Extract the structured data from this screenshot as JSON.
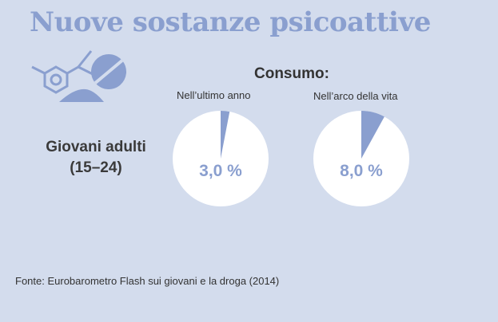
{
  "title": "Nuove sostanze psicoattive",
  "icon": "chemical-structure-and-pill-icon",
  "colors": {
    "background": "#d3dced",
    "accent": "#8a9fcf",
    "pie_bg": "#ffffff",
    "pie_slice": "#8a9fcf"
  },
  "consumo_label": "Consumo:",
  "row": {
    "label_line1": "Giovani adulti",
    "label_line2": "(15–24)"
  },
  "source": "Fonte: Eurobarometro Flash sui giovani e la droga (2014)",
  "chart_data": [
    {
      "type": "pie",
      "title": "Nell’ultimo anno",
      "values": [
        3.0,
        97.0
      ],
      "value_label": "3,0 %"
    },
    {
      "type": "pie",
      "title": "Nell’arco della vita",
      "values": [
        8.0,
        92.0
      ],
      "value_label": "8,0 %"
    }
  ]
}
